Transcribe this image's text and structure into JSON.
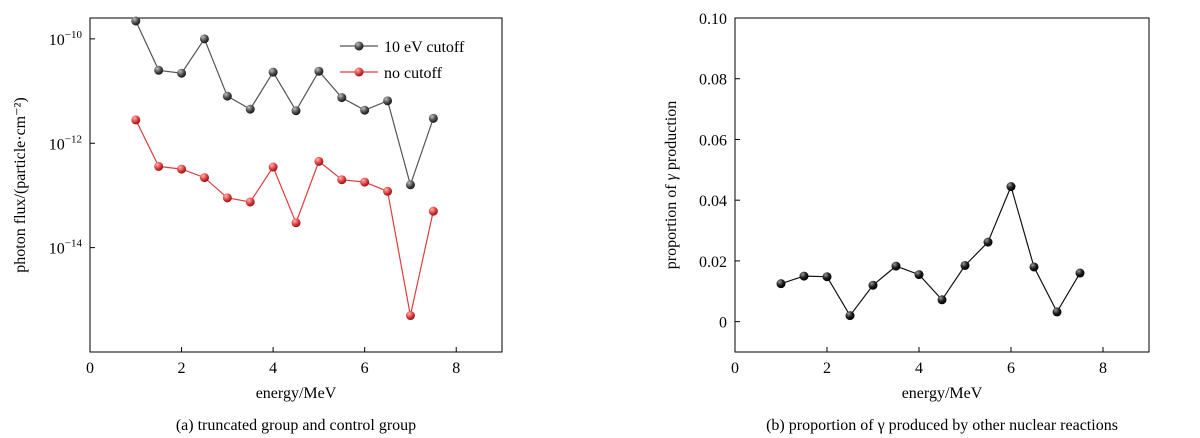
{
  "chart_data": [
    {
      "type": "line",
      "xlabel": "energy/MeV",
      "ylabel": "photon flux/(particle·cm⁻²)",
      "caption": "(a) truncated group and control group",
      "y_scale": "log",
      "xlim": [
        0,
        9
      ],
      "ylim_log10": [
        -16,
        -9.6
      ],
      "x_ticks": [
        "0",
        "2",
        "4",
        "6",
        "8"
      ],
      "y_ticks": [
        {
          "base": "10",
          "exp": "−10",
          "log10": -10
        },
        {
          "base": "10",
          "exp": "−12",
          "log10": -12
        },
        {
          "base": "10",
          "exp": "−14",
          "log10": -14
        }
      ],
      "legend_position": "top-right",
      "x": [
        1,
        1.5,
        2,
        2.5,
        3,
        3.5,
        4,
        4.5,
        5,
        5.5,
        6,
        6.5,
        7,
        7.5
      ],
      "series": [
        {
          "name": "10 eV cutoff",
          "color": "#555555",
          "values": [
            2.2e-10,
            2.5e-11,
            2.2e-11,
            1e-10,
            8e-12,
            4.5e-12,
            2.3e-11,
            4.2e-12,
            2.4e-11,
            7.5e-12,
            4.3e-12,
            6.5e-12,
            1.6e-13,
            3e-12
          ]
        },
        {
          "name": "no cutoff",
          "color": "#e03c3c",
          "values": [
            2.8e-12,
            3.6e-13,
            3.2e-13,
            2.2e-13,
            9e-14,
            7.5e-14,
            3.5e-13,
            3e-14,
            4.5e-13,
            2e-13,
            1.8e-13,
            1.2e-13,
            5e-16,
            5e-14
          ]
        }
      ]
    },
    {
      "type": "line",
      "xlabel": "energy/MeV",
      "ylabel_prefix": "proportion of ",
      "ylabel_symbol": "γ",
      "ylabel_suffix": " production",
      "caption": "(b) proportion of γ produced by other nuclear reactions",
      "xlim": [
        0,
        9
      ],
      "ylim": [
        -0.01,
        0.1
      ],
      "x_ticks": [
        "0",
        "2",
        "4",
        "6",
        "8"
      ],
      "y_ticks": [
        "0",
        "0.02",
        "0.04",
        "0.06",
        "0.08",
        "0.10"
      ],
      "x": [
        1,
        1.5,
        2,
        2.5,
        3,
        3.5,
        4,
        4.5,
        5,
        5.5,
        6,
        6.5,
        7,
        7.5
      ],
      "series": [
        {
          "color": "#111111",
          "values": [
            0.0125,
            0.015,
            0.0148,
            0.002,
            0.012,
            0.0183,
            0.0155,
            0.0072,
            0.0185,
            0.0262,
            0.0445,
            0.018,
            0.0032,
            0.016
          ]
        }
      ]
    }
  ]
}
